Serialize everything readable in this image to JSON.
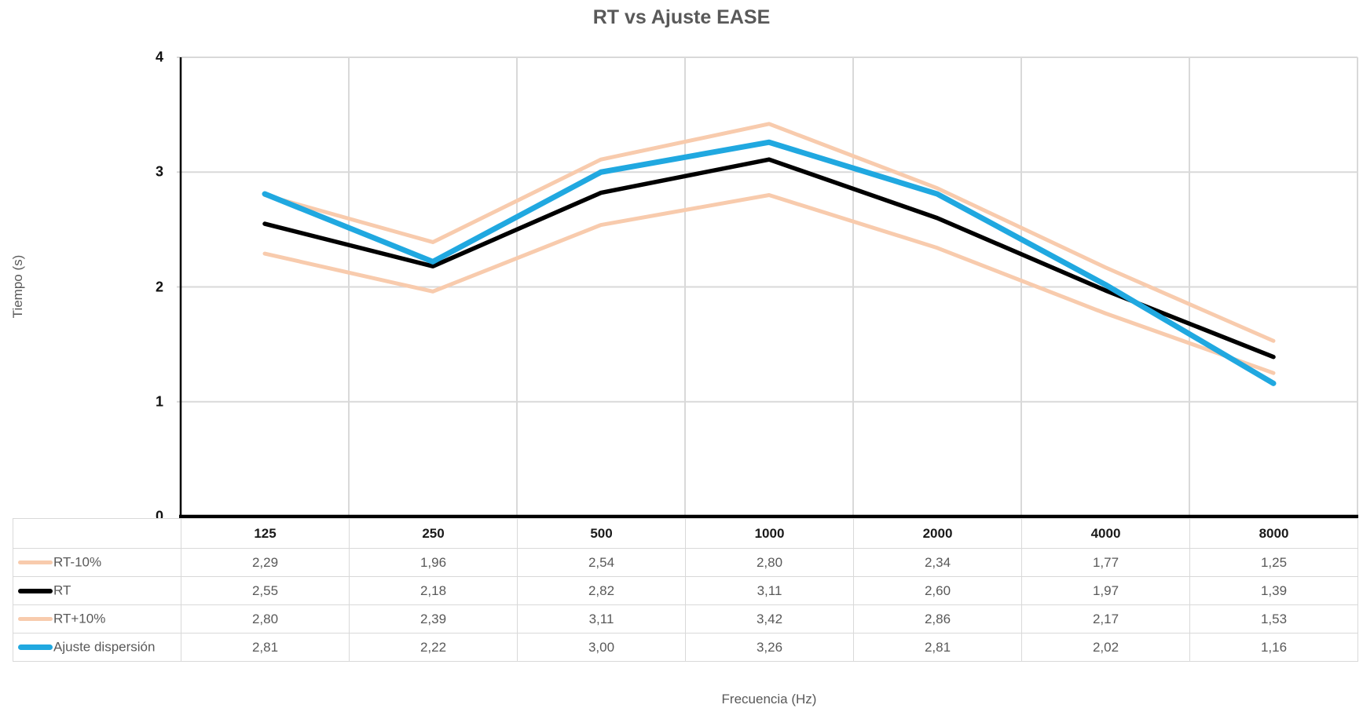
{
  "chart_data": {
    "type": "line",
    "title": "RT vs Ajuste EASE",
    "xlabel": "Frecuencia (Hz)",
    "ylabel": "Tiempo (s)",
    "categories": [
      "125",
      "250",
      "500",
      "1000",
      "2000",
      "4000",
      "8000"
    ],
    "ylim": [
      0,
      4
    ],
    "yticks": [
      "0",
      "1",
      "2",
      "3",
      "4"
    ],
    "grid": true,
    "legend_position": "table-left-column",
    "series": [
      {
        "name": "RT-10%",
        "color": "#F8CBAD",
        "line_width": 5,
        "values": [
          2.29,
          1.96,
          2.54,
          2.8,
          2.34,
          1.77,
          1.25
        ],
        "display_values": [
          "2,29",
          "1,96",
          "2,54",
          "2,80",
          "2,34",
          "1,77",
          "1,25"
        ]
      },
      {
        "name": "RT",
        "color": "#000000",
        "line_width": 5.5,
        "values": [
          2.55,
          2.18,
          2.82,
          3.11,
          2.6,
          1.97,
          1.39
        ],
        "display_values": [
          "2,55",
          "2,18",
          "2,82",
          "3,11",
          "2,60",
          "1,97",
          "1,39"
        ]
      },
      {
        "name": "RT+10%",
        "color": "#F8CBAD",
        "line_width": 5,
        "values": [
          2.8,
          2.39,
          3.11,
          3.42,
          2.86,
          2.17,
          1.53
        ],
        "display_values": [
          "2,80",
          "2,39",
          "3,11",
          "3,42",
          "2,86",
          "2,17",
          "1,53"
        ]
      },
      {
        "name": "Ajuste dispersión",
        "color": "#20A8E0",
        "line_width": 7,
        "values": [
          2.81,
          2.22,
          3.0,
          3.26,
          2.81,
          2.02,
          1.16
        ],
        "display_values": [
          "2,81",
          "2,22",
          "3,00",
          "3,26",
          "2,81",
          "2,02",
          "1,16"
        ]
      }
    ],
    "colors": {
      "axis": "#000000",
      "gridline": "#d9d9d9",
      "title_text": "#595959",
      "value_text": "#595959",
      "tick_text": "#111111"
    }
  }
}
